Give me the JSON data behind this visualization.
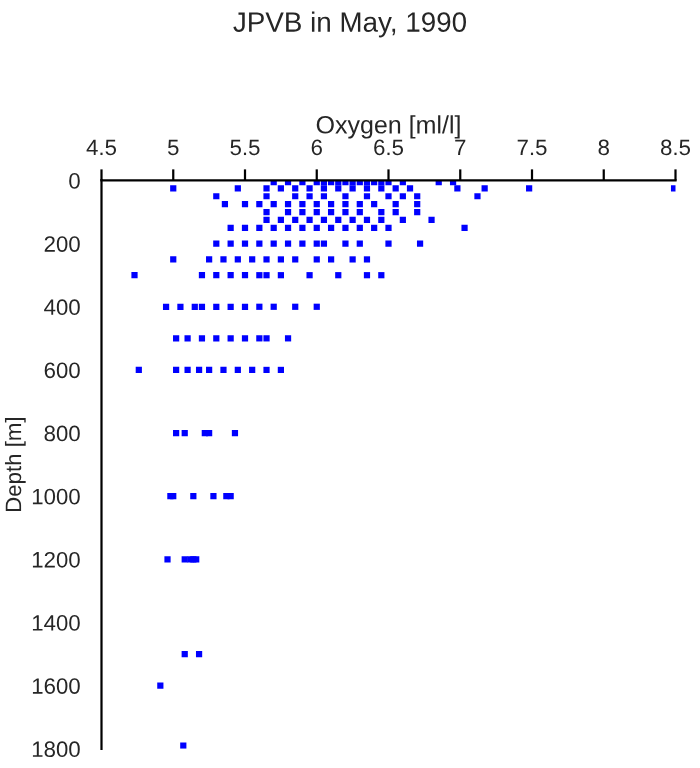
{
  "chart_data": {
    "type": "scatter",
    "title": "JPVB in May, 1990",
    "xlabel": "Oxygen [ml/l]",
    "ylabel": "Depth [m]",
    "xlim": [
      4.5,
      8.5
    ],
    "xticks": [
      4.5,
      5,
      5.5,
      6,
      6.5,
      7,
      7.5,
      8,
      8.5
    ],
    "ylim": [
      1800,
      0
    ],
    "yticks": [
      0,
      200,
      400,
      600,
      800,
      1000,
      1200,
      1400,
      1600,
      1800
    ],
    "marker": "square",
    "grid": false,
    "legend": false,
    "series": [
      {
        "color": "#0000ff",
        "x": [
          5.7,
          5.8,
          5.9,
          6.0,
          6.05,
          6.1,
          6.15,
          6.2,
          6.25,
          6.3,
          6.35,
          6.4,
          6.45,
          6.5,
          6.6,
          6.85,
          6.95,
          5.0,
          5.45,
          5.65,
          5.75,
          5.85,
          5.95,
          6.05,
          6.15,
          6.25,
          6.35,
          6.45,
          6.55,
          6.65,
          6.98,
          7.17,
          7.48,
          8.49,
          5.3,
          5.65,
          5.85,
          5.95,
          6.05,
          6.2,
          6.35,
          6.5,
          6.6,
          6.7,
          7.12,
          5.36,
          5.5,
          5.6,
          5.7,
          5.8,
          5.9,
          6.0,
          6.1,
          6.2,
          6.3,
          6.4,
          6.55,
          6.7,
          5.65,
          5.8,
          5.9,
          6.0,
          6.1,
          6.2,
          6.3,
          6.45,
          6.55,
          6.7,
          5.65,
          5.75,
          5.85,
          5.95,
          6.05,
          6.15,
          6.25,
          6.35,
          6.45,
          6.6,
          6.8,
          5.4,
          5.5,
          5.6,
          5.7,
          5.8,
          5.9,
          6.0,
          6.1,
          6.2,
          6.3,
          6.4,
          6.5,
          7.03,
          5.3,
          5.4,
          5.5,
          5.6,
          5.7,
          5.8,
          5.9,
          6.0,
          6.05,
          6.2,
          6.3,
          6.5,
          6.72,
          5.0,
          5.25,
          5.35,
          5.45,
          5.55,
          5.65,
          5.75,
          5.85,
          6.0,
          6.1,
          6.25,
          6.35,
          4.73,
          5.2,
          5.3,
          5.4,
          5.5,
          5.6,
          5.65,
          5.75,
          5.95,
          6.15,
          6.35,
          6.45,
          4.95,
          5.05,
          5.15,
          5.2,
          5.3,
          5.4,
          5.5,
          5.6,
          5.7,
          5.85,
          6.0,
          5.02,
          5.1,
          5.2,
          5.3,
          5.4,
          5.5,
          5.6,
          5.65,
          5.8,
          4.76,
          5.02,
          5.1,
          5.18,
          5.25,
          5.35,
          5.45,
          5.55,
          5.65,
          5.75,
          5.02,
          5.08,
          5.22,
          5.25,
          5.43,
          4.98,
          5.0,
          5.14,
          5.28,
          5.37,
          5.4,
          4.96,
          5.08,
          5.12,
          5.14,
          5.16,
          5.08,
          5.18,
          4.91,
          5.07
        ],
        "values": [
          5,
          5,
          5,
          5,
          5,
          5,
          5,
          5,
          5,
          5,
          5,
          5,
          5,
          5,
          5,
          5,
          5,
          25,
          25,
          25,
          25,
          25,
          25,
          25,
          25,
          25,
          25,
          25,
          25,
          25,
          25,
          25,
          25,
          25,
          50,
          50,
          50,
          50,
          50,
          50,
          50,
          50,
          50,
          50,
          50,
          75,
          75,
          75,
          75,
          75,
          75,
          75,
          75,
          75,
          75,
          75,
          75,
          75,
          100,
          100,
          100,
          100,
          100,
          100,
          100,
          100,
          100,
          100,
          125,
          125,
          125,
          125,
          125,
          125,
          125,
          125,
          125,
          125,
          125,
          150,
          150,
          150,
          150,
          150,
          150,
          150,
          150,
          150,
          150,
          150,
          150,
          150,
          200,
          200,
          200,
          200,
          200,
          200,
          200,
          200,
          200,
          200,
          200,
          200,
          200,
          250,
          250,
          250,
          250,
          250,
          250,
          250,
          250,
          250,
          250,
          250,
          250,
          300,
          300,
          300,
          300,
          300,
          300,
          300,
          300,
          300,
          300,
          300,
          300,
          400,
          400,
          400,
          400,
          400,
          400,
          400,
          400,
          400,
          400,
          400,
          500,
          500,
          500,
          500,
          500,
          500,
          500,
          500,
          500,
          600,
          600,
          600,
          600,
          600,
          600,
          600,
          600,
          600,
          600,
          800,
          800,
          800,
          800,
          800,
          1000,
          1000,
          1000,
          1000,
          1000,
          1000,
          1200,
          1200,
          1200,
          1200,
          1200,
          1500,
          1500,
          1600,
          1790
        ]
      }
    ]
  }
}
